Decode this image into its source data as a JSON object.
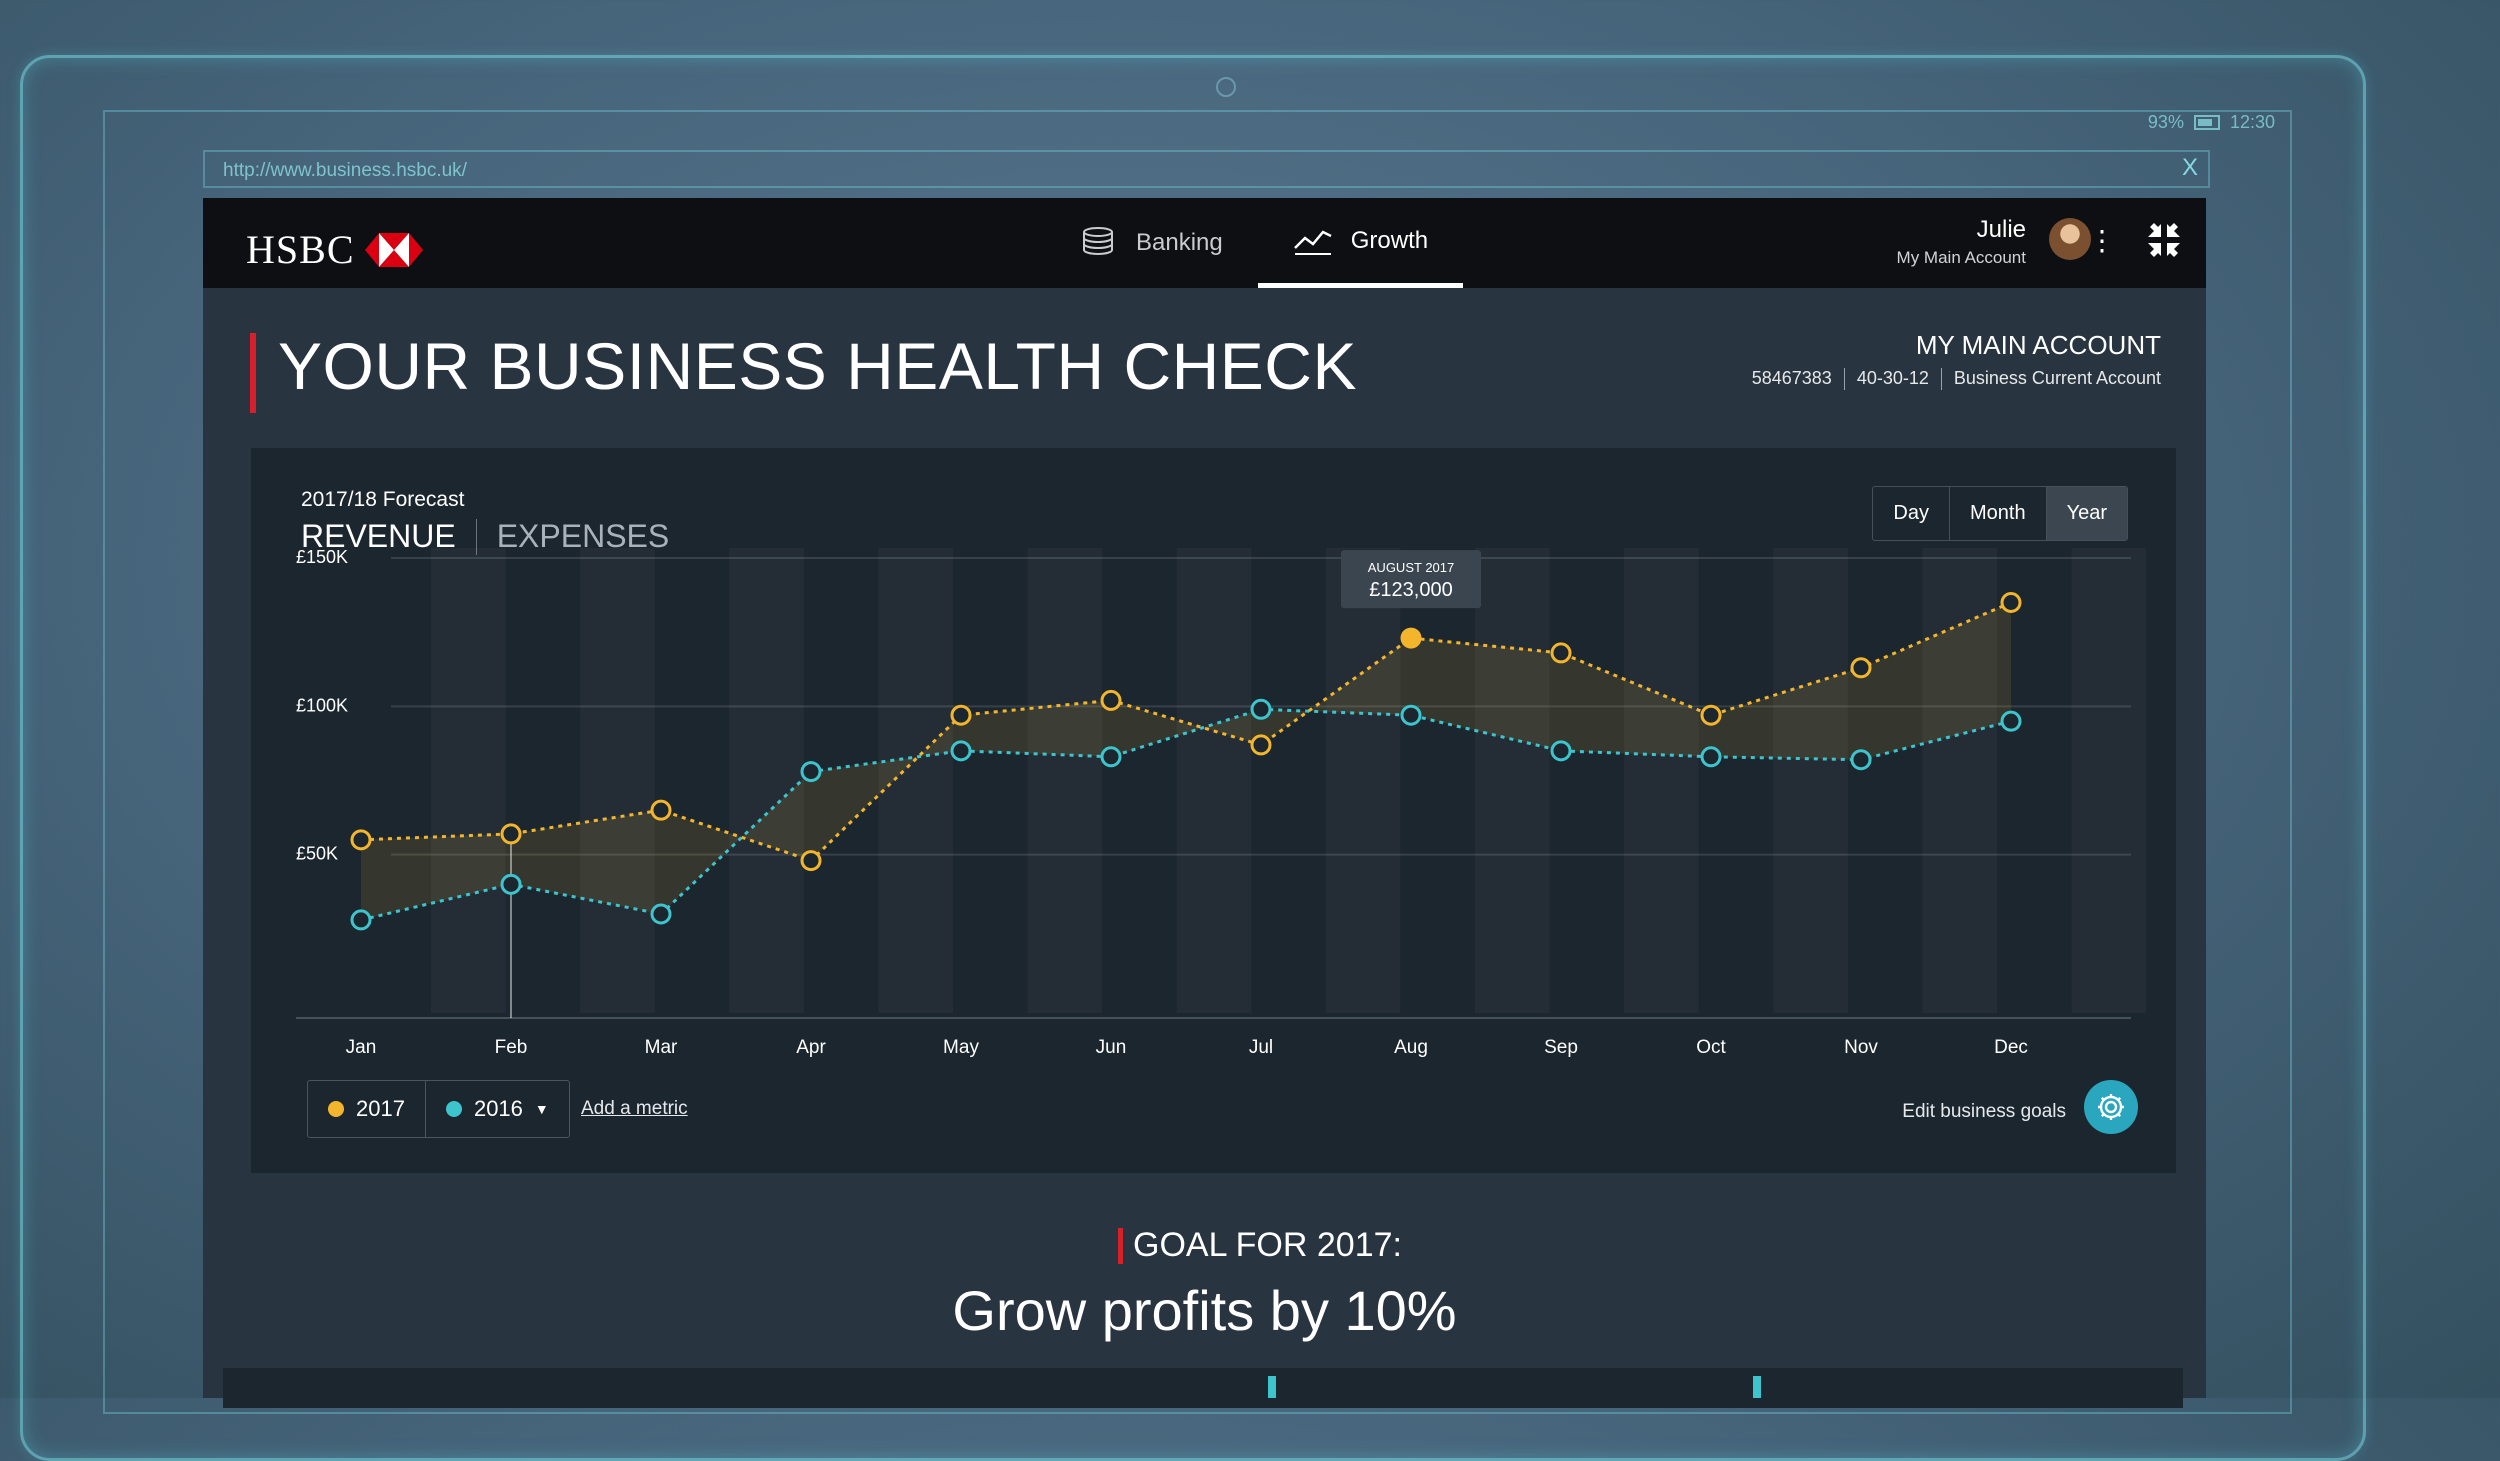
{
  "status": {
    "battery": "93%",
    "time": "12:30"
  },
  "browser": {
    "url": "http://www.business.hsbc.uk/",
    "close": "X"
  },
  "nav": {
    "logo": "HSBC",
    "tabs": [
      {
        "label": "Banking",
        "icon": "coins-icon"
      },
      {
        "label": "Growth",
        "icon": "growth-chart-icon"
      }
    ],
    "active_tab": "Growth",
    "user_name": "Julie",
    "user_account": "My Main Account"
  },
  "header": {
    "title": "YOUR BUSINESS HEALTH CHECK",
    "account_title": "MY MAIN ACCOUNT",
    "account_number": "58467383",
    "sort_code": "40-30-12",
    "account_type": "Business Current Account"
  },
  "chart_card": {
    "forecast_label": "2017/18 Forecast",
    "metric_tabs": [
      "REVENUE",
      "EXPENSES"
    ],
    "active_metric": "REVENUE",
    "ranges": [
      "Day",
      "Month",
      "Year"
    ],
    "active_range": "Year",
    "tooltip": {
      "label": "AUGUST 2017",
      "value": "£123,000"
    },
    "legend": [
      {
        "label": "2017",
        "color": "#f2b52c"
      },
      {
        "label": "2016",
        "color": "#3dc4cc"
      }
    ],
    "add_metric": "Add a metric",
    "edit_goals": "Edit business goals"
  },
  "chart_data": {
    "type": "line",
    "categories": [
      "Jan",
      "Feb",
      "Mar",
      "Apr",
      "May",
      "Jun",
      "Jul",
      "Aug",
      "Sep",
      "Oct",
      "Nov",
      "Dec"
    ],
    "ytick_labels": [
      "£150K",
      "£100K",
      "£50K"
    ],
    "ylim": [
      0,
      150000
    ],
    "series": [
      {
        "name": "2017",
        "color": "#f2b52c",
        "values": [
          55000,
          57000,
          65000,
          48000,
          97000,
          102000,
          87000,
          123000,
          118000,
          97000,
          113000,
          135000
        ]
      },
      {
        "name": "2016",
        "color": "#3dc4cc",
        "values": [
          28000,
          40000,
          30000,
          78000,
          85000,
          83000,
          99000,
          97000,
          85000,
          83000,
          82000,
          95000
        ]
      }
    ]
  },
  "goal": {
    "label": "GOAL FOR 2017:",
    "text": "Grow profits by 10%"
  }
}
